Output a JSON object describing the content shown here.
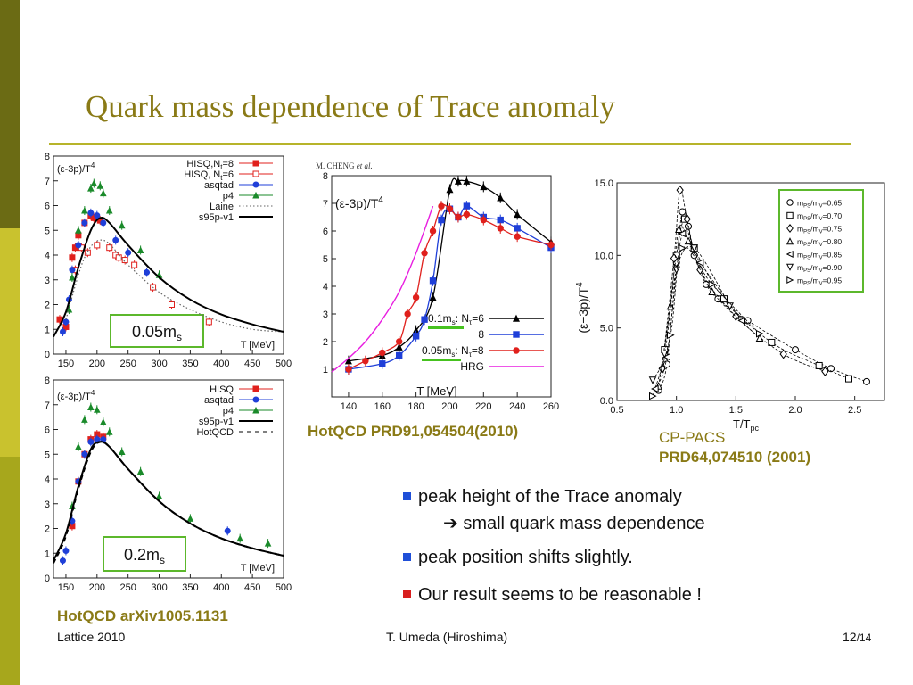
{
  "slide": {
    "title": "Quark mass dependence of Trace anomaly",
    "footer_left": "Lattice 2010",
    "footer_center": "T. Umeda (Hiroshima)",
    "page": "12",
    "total": "/14",
    "colors": {
      "olive": "#8a7a16",
      "rule": "#b7b42a",
      "box_border": "#5cb82c",
      "bullet_blue": "#1f4fd8",
      "bullet_red": "#d81f1f"
    }
  },
  "panels": {
    "top_left": {
      "ylabel": "(ε-3p)/T",
      "ylabel_sup": "4",
      "legend": [
        "HISQ,N",
        "HISQ, N",
        "asqtad",
        "p4",
        "Laine",
        "s95p-v1"
      ],
      "legend_sub": [
        "t",
        "t"
      ],
      "legend_tail": [
        "=8",
        "=6"
      ],
      "xunit": "T [MeV]",
      "mass_label": "0.05m",
      "mass_sub": "s"
    },
    "bottom_left": {
      "ylabel": "(ε-3p)/T",
      "ylabel_sup": "4",
      "legend": [
        "HISQ",
        "asqtad",
        "p4",
        "s95p-v1",
        "HotQCD"
      ],
      "xunit": "T [MeV]",
      "mass_label": "0.2m",
      "mass_sub": "s"
    },
    "middle": {
      "author": "M. CHENG",
      "author_etal": "et al.",
      "ylabel": "(ε-3p)/T",
      "ylabel_sup": "4",
      "legend": [
        "0.1m",
        ": N",
        "=6",
        "8",
        "0.05m",
        ": N",
        "=8",
        "HRG"
      ],
      "xunit": "T [MeV]"
    },
    "right": {
      "ylabel": "(ε−3p)/T",
      "ylabel_sup": "4",
      "xlabel": "T/T",
      "xlabel_sub": "pc",
      "legend": [
        "m",
        "/m",
        "=0.65",
        "=0.70",
        "=0.75",
        "=0.80",
        "=0.85",
        "=0.90",
        "=0.95"
      ]
    }
  },
  "captions": {
    "bottom_left": "HotQCD arXiv1005.1131",
    "middle": "HotQCD PRD91,054504(2010)",
    "right_line1": "CP-PACS",
    "right_line2": "PRD64,074510 (2001)"
  },
  "bullets": [
    {
      "text": "peak height of the Trace anomaly",
      "color": "#1f4fd8"
    },
    {
      "text": "➔ small quark mass dependence",
      "color": ""
    },
    {
      "text": "peak position shifts slightly.",
      "color": "#1f4fd8"
    },
    {
      "text": "Our result seems to be reasonable !",
      "color": "#d81f1f"
    }
  ],
  "chart_data": [
    {
      "type": "scatter",
      "title": "",
      "ylabel": "(ε-3p)/T^4",
      "xlabel": "T [MeV]",
      "xlim": [
        130,
        500
      ],
      "ylim": [
        0,
        8
      ],
      "xticks": [
        150,
        200,
        250,
        300,
        350,
        400,
        450,
        500
      ],
      "yticks": [
        0,
        1,
        2,
        3,
        4,
        5,
        6,
        7,
        8
      ],
      "series": [
        {
          "name": "HISQ,Nt=8",
          "color": "#e0201c",
          "marker": "square-filled",
          "x": [
            140,
            150,
            160,
            165,
            170,
            180,
            190,
            195,
            205
          ],
          "y": [
            1.4,
            1.1,
            3.9,
            4.3,
            4.8,
            5.3,
            5.6,
            5.5,
            5.4
          ]
        },
        {
          "name": "HISQ, Nt=6",
          "color": "#e0201c",
          "marker": "square-open",
          "x": [
            165,
            175,
            185,
            200,
            220,
            230,
            235,
            245,
            260,
            290,
            320,
            380
          ],
          "y": [
            3.4,
            4.3,
            4.1,
            4.4,
            4.3,
            4.0,
            3.9,
            3.8,
            3.6,
            2.7,
            2.0,
            1.3
          ]
        },
        {
          "name": "asqtad",
          "color": "#1f3fd8",
          "marker": "circle-filled",
          "x": [
            145,
            150,
            155,
            160,
            170,
            180,
            190,
            200,
            210,
            230,
            250,
            280
          ],
          "y": [
            0.9,
            1.3,
            2.2,
            3.4,
            4.4,
            5.3,
            5.7,
            5.6,
            5.3,
            4.6,
            4.1,
            3.3
          ]
        },
        {
          "name": "p4",
          "color": "#1a8a2a",
          "marker": "triangle-filled",
          "x": [
            155,
            160,
            170,
            180,
            190,
            195,
            205,
            210,
            220,
            240,
            270,
            300
          ],
          "y": [
            1.8,
            3.1,
            5.0,
            5.8,
            6.7,
            6.9,
            6.8,
            6.5,
            5.8,
            5.2,
            4.2,
            3.2
          ]
        },
        {
          "name": "Laine",
          "color": "#666666",
          "marker": "dotted-line",
          "x": [
            150,
            180,
            210,
            250,
            300,
            350,
            400,
            450,
            500
          ],
          "y": [
            1.4,
            3.9,
            4.6,
            3.6,
            2.5,
            1.8,
            1.3,
            1.0,
            0.9
          ]
        },
        {
          "name": "s95p-v1",
          "color": "#000000",
          "marker": "solid-line",
          "x": [
            130,
            150,
            170,
            190,
            205,
            220,
            250,
            300,
            350,
            400,
            450,
            500
          ],
          "y": [
            0.7,
            1.7,
            3.5,
            5.0,
            5.5,
            5.3,
            4.4,
            3.1,
            2.2,
            1.6,
            1.2,
            0.9
          ]
        }
      ]
    },
    {
      "type": "scatter",
      "title": "",
      "ylabel": "(ε-3p)/T^4",
      "xlabel": "T [MeV]",
      "xlim": [
        130,
        500
      ],
      "ylim": [
        0,
        8
      ],
      "xticks": [
        150,
        200,
        250,
        300,
        350,
        400,
        450,
        500
      ],
      "yticks": [
        0,
        1,
        2,
        3,
        4,
        5,
        6,
        7,
        8
      ],
      "series": [
        {
          "name": "HISQ",
          "color": "#e0201c",
          "marker": "square-filled",
          "x": [
            160,
            170,
            180,
            190,
            200,
            210
          ],
          "y": [
            2.1,
            3.9,
            5.0,
            5.6,
            5.8,
            5.7
          ]
        },
        {
          "name": "asqtad",
          "color": "#1f3fd8",
          "marker": "circle-filled",
          "x": [
            145,
            150,
            160,
            170,
            180,
            190,
            200,
            210,
            410
          ],
          "y": [
            0.7,
            1.1,
            2.3,
            3.9,
            5.0,
            5.5,
            5.6,
            5.6,
            1.9
          ]
        },
        {
          "name": "p4",
          "color": "#1a8a2a",
          "marker": "triangle-filled",
          "x": [
            160,
            170,
            180,
            190,
            200,
            210,
            220,
            240,
            270,
            300,
            350,
            430,
            475
          ],
          "y": [
            2.9,
            5.3,
            6.4,
            6.9,
            6.8,
            6.3,
            5.9,
            5.1,
            4.3,
            3.3,
            2.4,
            1.6,
            1.4
          ]
        },
        {
          "name": "s95p-v1",
          "color": "#000000",
          "marker": "solid-line",
          "x": [
            130,
            150,
            170,
            190,
            205,
            220,
            250,
            300,
            350,
            400,
            450,
            500
          ],
          "y": [
            0.7,
            1.8,
            3.7,
            5.2,
            5.5,
            5.3,
            4.4,
            3.1,
            2.2,
            1.6,
            1.2,
            0.9
          ]
        },
        {
          "name": "HotQCD",
          "color": "#000000",
          "marker": "dashed-line",
          "x": [
            130,
            150,
            170,
            190,
            205,
            220,
            250,
            300,
            350,
            400,
            450,
            500
          ],
          "y": [
            0.6,
            1.7,
            3.6,
            5.1,
            5.5,
            5.3,
            4.4,
            3.1,
            2.2,
            1.6,
            1.2,
            0.9
          ]
        }
      ]
    },
    {
      "type": "line",
      "title": "",
      "ylabel": "(ε-3p)/T^4",
      "xlabel": "T [MeV]",
      "xlim": [
        130,
        260
      ],
      "ylim": [
        0,
        8
      ],
      "xticks": [
        140,
        160,
        180,
        200,
        220,
        240,
        260
      ],
      "yticks": [
        1,
        2,
        3,
        4,
        5,
        6,
        7,
        8
      ],
      "series": [
        {
          "name": "0.1ms: Nτ=6",
          "color": "#000000",
          "marker": "triangle-filled",
          "x": [
            140,
            160,
            170,
            180,
            190,
            200,
            205,
            210,
            220,
            230,
            240,
            260
          ],
          "y": [
            1.3,
            1.5,
            1.8,
            2.4,
            3.6,
            7.5,
            7.8,
            7.8,
            7.6,
            7.2,
            6.6,
            5.6
          ]
        },
        {
          "name": "8",
          "color": "#1f3fd8",
          "marker": "square-filled",
          "x": [
            140,
            160,
            170,
            180,
            185,
            190,
            195,
            200,
            205,
            210,
            220,
            230,
            240,
            260
          ],
          "y": [
            1.0,
            1.2,
            1.5,
            2.2,
            2.8,
            4.2,
            6.4,
            6.8,
            6.5,
            6.9,
            6.5,
            6.4,
            6.1,
            5.4
          ]
        },
        {
          "name": "0.05ms: Nτ=8",
          "color": "#e0201c",
          "marker": "circle-filled",
          "x": [
            140,
            150,
            160,
            170,
            175,
            180,
            185,
            190,
            195,
            200,
            205,
            210,
            220,
            230,
            240,
            260
          ],
          "y": [
            1.0,
            1.3,
            1.6,
            2.0,
            3.0,
            3.6,
            5.2,
            6.0,
            6.9,
            6.8,
            6.5,
            6.6,
            6.4,
            6.1,
            5.8,
            5.5
          ]
        },
        {
          "name": "HRG",
          "color": "#e81ee0",
          "marker": "solid-line",
          "x": [
            130,
            140,
            150,
            160,
            170,
            180,
            190
          ],
          "y": [
            0.9,
            1.4,
            2.0,
            2.8,
            3.8,
            5.2,
            6.9
          ]
        }
      ]
    },
    {
      "type": "scatter",
      "title": "",
      "ylabel": "(ε−3p)/T^4",
      "xlabel": "T/Tpc",
      "xlim": [
        0.5,
        2.75
      ],
      "ylim": [
        0,
        15
      ],
      "xticks": [
        0.5,
        1.0,
        1.5,
        2.0,
        2.5
      ],
      "xtick_labels": [
        "0.5",
        "1.0",
        "1.5",
        "2.0",
        "2.5"
      ],
      "yticks": [
        0,
        5,
        10,
        15
      ],
      "ytick_labels": [
        "0.0",
        "5.0",
        "10.0",
        "15.0"
      ],
      "series": [
        {
          "name": "mPS/mV=0.65",
          "color": "#000000",
          "marker": "circle-open",
          "x": [
            0.85,
            0.92,
            1.0,
            1.05,
            1.1,
            1.15,
            1.25,
            1.35,
            1.6,
            2.0,
            2.3,
            2.6
          ],
          "y": [
            0.7,
            2.5,
            9.5,
            13.0,
            12.0,
            10.0,
            8.0,
            7.0,
            5.5,
            3.5,
            2.2,
            1.3
          ]
        },
        {
          "name": "mPS/mV=0.70",
          "color": "#000000",
          "marker": "square-open",
          "x": [
            0.9,
            1.0,
            1.07,
            1.15,
            1.4,
            1.8,
            2.2,
            2.45
          ],
          "y": [
            3.5,
            10.0,
            12.5,
            10.5,
            7.0,
            4.0,
            2.4,
            1.5
          ]
        },
        {
          "name": "mPS/mV=0.75",
          "color": "#000000",
          "marker": "diamond-open",
          "x": [
            0.88,
            0.98,
            1.03,
            1.09,
            1.2,
            1.5,
            1.9,
            2.25
          ],
          "y": [
            2.2,
            9.8,
            14.5,
            12.5,
            9.0,
            5.8,
            3.2,
            2.0
          ]
        },
        {
          "name": "mPS/mV=0.80",
          "color": "#000000",
          "marker": "triangle-up-open",
          "x": [
            0.85,
            0.95,
            1.02,
            1.1,
            1.3,
            1.7
          ],
          "y": [
            1.0,
            6.5,
            11.8,
            11.0,
            7.5,
            4.3
          ]
        },
        {
          "name": "mPS/mV=0.85",
          "color": "#000000",
          "marker": "triangle-left-open",
          "x": [
            0.82,
            0.92,
            1.05,
            1.2,
            1.55
          ],
          "y": [
            0.8,
            3.0,
            11.5,
            9.5,
            5.5
          ]
        },
        {
          "name": "mPS/mV=0.90",
          "color": "#000000",
          "marker": "triangle-down-open",
          "x": [
            0.8,
            0.9,
            1.0,
            1.15,
            1.45
          ],
          "y": [
            1.4,
            3.2,
            9.0,
            10.5,
            6.5
          ]
        },
        {
          "name": "mPS/mV=0.95",
          "color": "#000000",
          "marker": "triangle-right-open",
          "x": [
            0.8,
            0.95,
            1.05,
            1.3,
            1.7
          ],
          "y": [
            0.3,
            4.5,
            10.5,
            8.0,
            4.6
          ]
        }
      ]
    }
  ]
}
